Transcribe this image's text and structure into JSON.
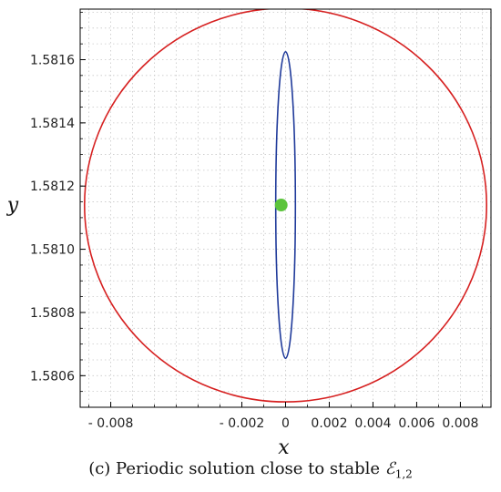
{
  "chart_data": {
    "type": "scatter",
    "xlabel": "x",
    "ylabel": "y",
    "xlim": [
      -0.0094,
      0.0094
    ],
    "ylim": [
      1.5805,
      1.58176
    ],
    "x_ticks": [
      -0.008,
      -0.002,
      0,
      0.002,
      0.004,
      0.006,
      0.008
    ],
    "x_tick_labels": [
      "- 0.008",
      "- 0.002",
      "0",
      "0.002",
      "0.004",
      "0.006",
      "0.008"
    ],
    "y_ticks": [
      1.5806,
      1.5808,
      1.581,
      1.5812,
      1.5814,
      1.5816
    ],
    "y_tick_labels": [
      "1.5806",
      "1.5808",
      "1.5810",
      "1.5812",
      "1.5814",
      "1.5816"
    ],
    "grid": true,
    "series": [
      {
        "kind": "ellipse",
        "color": "#d62020",
        "center": [
          0.0,
          1.58114
        ],
        "semi_axes": [
          0.0092,
          0.000623
        ]
      },
      {
        "kind": "ellipse",
        "color": "#1f3a9a",
        "center": [
          0.0,
          1.58114
        ],
        "semi_axes": [
          0.00045,
          0.000485
        ]
      },
      {
        "kind": "point",
        "color": "#5cc43c",
        "x": -0.0002,
        "y": 1.58114
      }
    ]
  },
  "caption": {
    "prefix": "(c) Periodic solution close to stable ",
    "symbol": "ℰ",
    "subscript": "1,2"
  }
}
